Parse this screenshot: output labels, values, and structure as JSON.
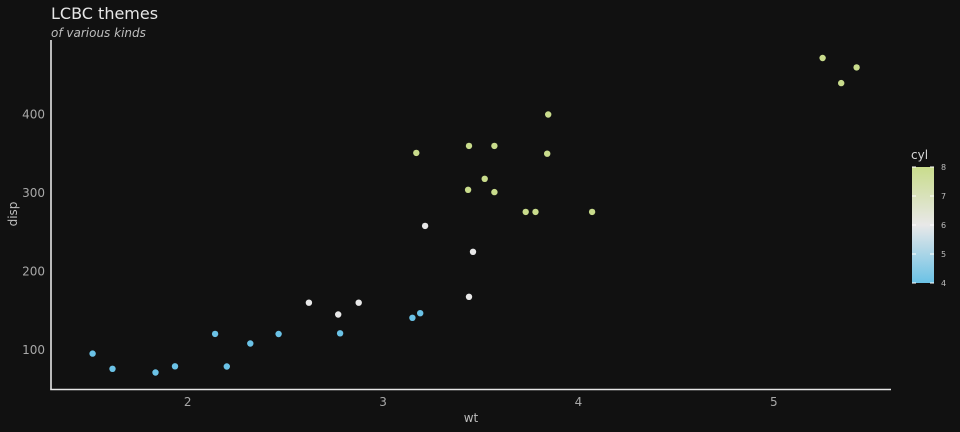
{
  "chart_data": {
    "type": "scatter",
    "title": "LCBC themes",
    "subtitle": "of various kinds",
    "xlabel": "wt",
    "ylabel": "disp",
    "xlim": [
      1.3,
      5.6
    ],
    "ylim": [
      50,
      495
    ],
    "x_ticks": [
      2,
      3,
      4,
      5
    ],
    "y_ticks": [
      100,
      200,
      300,
      400
    ],
    "grid": false,
    "colors": {
      "low": "#6bc2e6",
      "mid": "#e8e8e8",
      "high": "#c9dc8c",
      "background": "#111111"
    },
    "legend": {
      "title": "cyl",
      "placement": "right",
      "min": 4,
      "max": 8,
      "ticks": [
        4,
        5,
        6,
        7,
        8
      ]
    },
    "points": [
      {
        "x": 1.513,
        "y": 95.1,
        "cyl": 4
      },
      {
        "x": 1.615,
        "y": 75.7,
        "cyl": 4
      },
      {
        "x": 1.835,
        "y": 71.1,
        "cyl": 4
      },
      {
        "x": 1.935,
        "y": 79.0,
        "cyl": 4
      },
      {
        "x": 2.14,
        "y": 120.3,
        "cyl": 4
      },
      {
        "x": 2.2,
        "y": 78.7,
        "cyl": 4
      },
      {
        "x": 2.32,
        "y": 108.0,
        "cyl": 4
      },
      {
        "x": 2.465,
        "y": 120.1,
        "cyl": 4
      },
      {
        "x": 2.62,
        "y": 160.0,
        "cyl": 6
      },
      {
        "x": 2.77,
        "y": 145.0,
        "cyl": 6
      },
      {
        "x": 2.78,
        "y": 121.0,
        "cyl": 4
      },
      {
        "x": 2.875,
        "y": 160.0,
        "cyl": 6
      },
      {
        "x": 3.15,
        "y": 140.8,
        "cyl": 4
      },
      {
        "x": 3.17,
        "y": 351.0,
        "cyl": 8
      },
      {
        "x": 3.19,
        "y": 146.7,
        "cyl": 4
      },
      {
        "x": 3.215,
        "y": 258.0,
        "cyl": 6
      },
      {
        "x": 3.435,
        "y": 304.0,
        "cyl": 8
      },
      {
        "x": 3.44,
        "y": 167.6,
        "cyl": 6
      },
      {
        "x": 3.44,
        "y": 360.0,
        "cyl": 8
      },
      {
        "x": 3.46,
        "y": 225.0,
        "cyl": 6
      },
      {
        "x": 3.52,
        "y": 318.0,
        "cyl": 8
      },
      {
        "x": 3.57,
        "y": 360.0,
        "cyl": 8
      },
      {
        "x": 3.57,
        "y": 301.0,
        "cyl": 8
      },
      {
        "x": 3.73,
        "y": 275.8,
        "cyl": 8
      },
      {
        "x": 3.78,
        "y": 275.8,
        "cyl": 8
      },
      {
        "x": 3.84,
        "y": 350.0,
        "cyl": 8
      },
      {
        "x": 3.845,
        "y": 400.0,
        "cyl": 8
      },
      {
        "x": 4.07,
        "y": 275.8,
        "cyl": 8
      },
      {
        "x": 5.25,
        "y": 472.0,
        "cyl": 8
      },
      {
        "x": 5.345,
        "y": 440.0,
        "cyl": 8
      },
      {
        "x": 5.424,
        "y": 460.0,
        "cyl": 8
      }
    ]
  }
}
